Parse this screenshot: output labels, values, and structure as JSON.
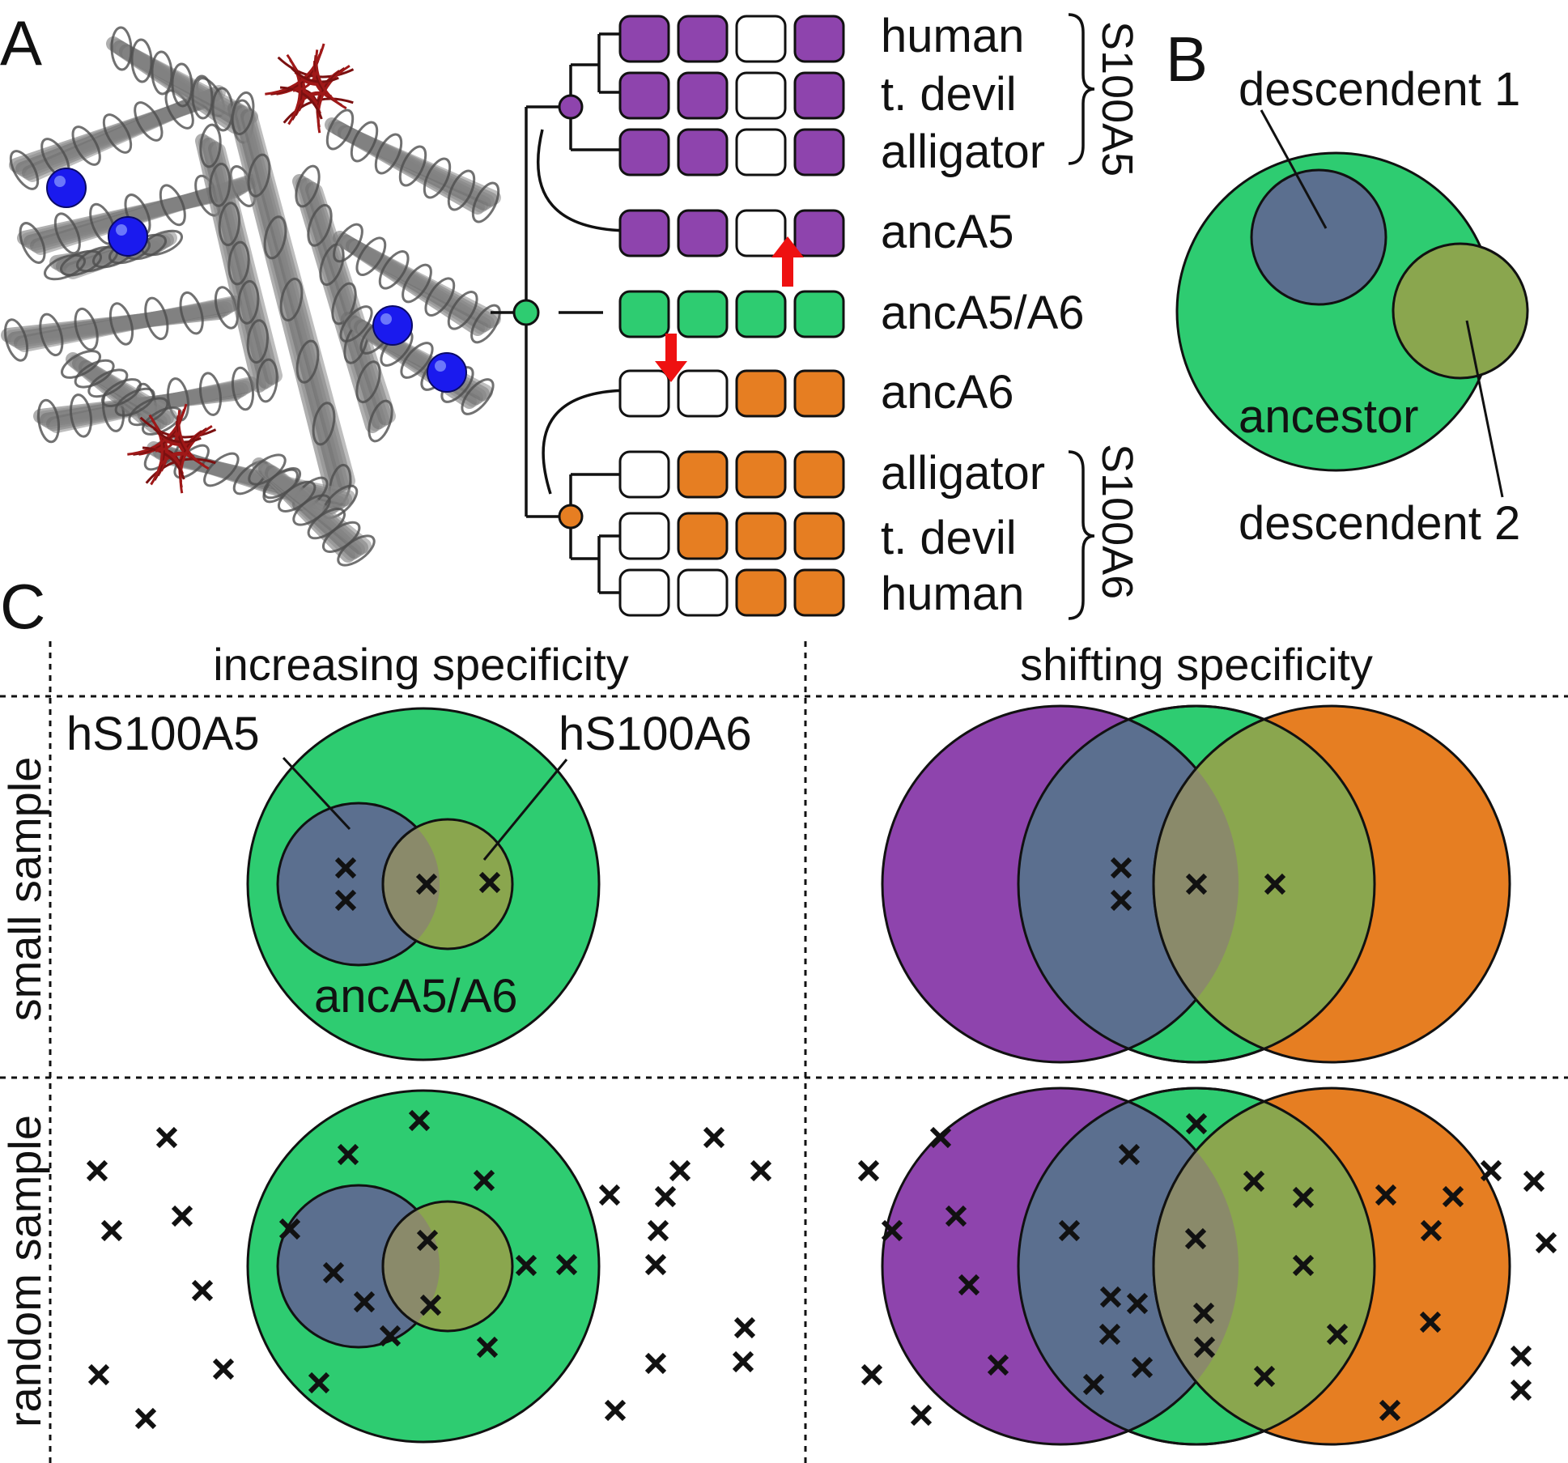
{
  "panel_labels": {
    "a": "A",
    "b": "B",
    "c": "C"
  },
  "colors": {
    "purple": "#8e44ad",
    "green": "#2ecc71",
    "orange": "#e67e22",
    "slate": "#5b6f8f",
    "olive": "#8aa64e",
    "overlap": "#8a8a6a",
    "protein_gray": "#6e6e6e",
    "protein_blue": "#1a1aee",
    "protein_red": "#a01818",
    "arrow_red": "#ee1111"
  },
  "panel_a": {
    "structure_image": "protein-structure-ensemble",
    "species": [
      {
        "name": "human",
        "boxes": [
          "purple",
          "purple",
          "white",
          "purple"
        ]
      },
      {
        "name": "t. devil",
        "boxes": [
          "purple",
          "purple",
          "white",
          "purple"
        ]
      },
      {
        "name": "alligator",
        "boxes": [
          "purple",
          "purple",
          "white",
          "purple"
        ]
      },
      {
        "name": "ancA5",
        "boxes": [
          "purple",
          "purple",
          "white",
          "purple"
        ]
      },
      {
        "name": "ancA5/A6",
        "boxes": [
          "green",
          "green",
          "green",
          "green"
        ]
      },
      {
        "name": "ancA6",
        "boxes": [
          "white",
          "white",
          "orange",
          "orange"
        ]
      },
      {
        "name": "alligator",
        "boxes": [
          "white",
          "orange",
          "orange",
          "orange"
        ]
      },
      {
        "name": "t. devil",
        "boxes": [
          "white",
          "orange",
          "orange",
          "orange"
        ]
      },
      {
        "name": "human",
        "boxes": [
          "white",
          "white",
          "orange",
          "orange"
        ]
      }
    ],
    "group_labels": [
      "S100A5",
      "S100A6"
    ]
  },
  "panel_b": {
    "outer": "ancestor",
    "inner1": "descendent 1",
    "inner2": "descendent 2"
  },
  "panel_c": {
    "col_headers": [
      "increasing specificity",
      "shifting specificity"
    ],
    "row_headers": [
      "small sample",
      "random sample"
    ],
    "labels": {
      "a5": "hS100A5",
      "a6": "hS100A6",
      "anc": "ancA5/A6"
    }
  }
}
